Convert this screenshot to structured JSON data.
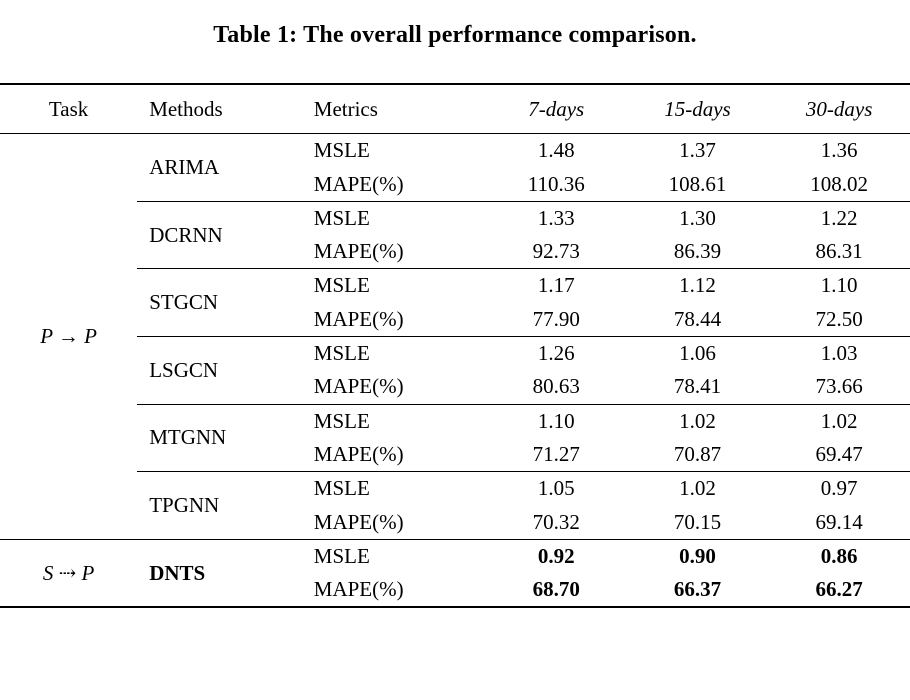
{
  "page": {
    "title": "Table 1: The overall performance comparison."
  },
  "table": {
    "headers": {
      "task": "Task",
      "methods": "Methods",
      "metrics": "Metrics",
      "d7": "7-days",
      "d15": "15-days",
      "d30": "30-days"
    },
    "tasks": {
      "pp": "P → P",
      "sp": "S ⇢ P"
    },
    "metric_labels": {
      "msle": "MSLE",
      "mape": "MAPE(%)"
    },
    "groups": [
      {
        "method": "ARIMA",
        "msle": [
          "1.48",
          "1.37",
          "1.36"
        ],
        "mape": [
          "110.36",
          "108.61",
          "108.02"
        ]
      },
      {
        "method": "DCRNN",
        "msle": [
          "1.33",
          "1.30",
          "1.22"
        ],
        "mape": [
          "92.73",
          "86.39",
          "86.31"
        ]
      },
      {
        "method": "STGCN",
        "msle": [
          "1.17",
          "1.12",
          "1.10"
        ],
        "mape": [
          "77.90",
          "78.44",
          "72.50"
        ]
      },
      {
        "method": "LSGCN",
        "msle": [
          "1.26",
          "1.06",
          "1.03"
        ],
        "mape": [
          "80.63",
          "78.41",
          "73.66"
        ]
      },
      {
        "method": "MTGNN",
        "msle": [
          "1.10",
          "1.02",
          "1.02"
        ],
        "mape": [
          "71.27",
          "70.87",
          "69.47"
        ]
      },
      {
        "method": "TPGNN",
        "msle": [
          "1.05",
          "1.02",
          "0.97"
        ],
        "mape": [
          "70.32",
          "70.15",
          "69.14"
        ]
      },
      {
        "method": "DNTS",
        "msle": [
          "0.92",
          "0.90",
          "0.86"
        ],
        "mape": [
          "68.70",
          "66.37",
          "66.27"
        ]
      }
    ]
  }
}
